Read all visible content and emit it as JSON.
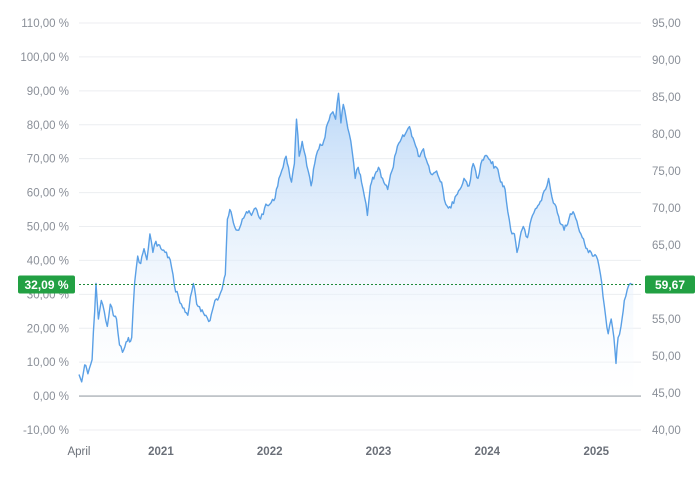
{
  "chart_data": {
    "type": "line",
    "x_range": [
      "2020-04-01",
      "2025-05-31"
    ],
    "x_ticks": [
      {
        "label": "April",
        "date": "2020-04-01",
        "bold": false
      },
      {
        "label": "2021",
        "date": "2021-01-01",
        "bold": true
      },
      {
        "label": "2022",
        "date": "2022-01-01",
        "bold": true
      },
      {
        "label": "2023",
        "date": "2023-01-01",
        "bold": true
      },
      {
        "label": "2024",
        "date": "2024-01-01",
        "bold": true
      },
      {
        "label": "2025",
        "date": "2025-01-01",
        "bold": true
      }
    ],
    "left_axis": {
      "unit": "percent change",
      "range": [
        -10,
        110
      ],
      "tick_labels": [
        "-10,00 %",
        "0,00 %",
        "10,00 %",
        "20,00 %",
        "30,00 %",
        "40,00 %",
        "50,00 %",
        "60,00 %",
        "70,00 %",
        "80,00 %",
        "90,00 %",
        "100,00 %",
        "110,00 %"
      ],
      "tick_values": [
        -10,
        0,
        10,
        20,
        30,
        40,
        50,
        60,
        70,
        80,
        90,
        100,
        110
      ]
    },
    "right_axis": {
      "unit": "price",
      "range": [
        40,
        95
      ],
      "tick_labels": [
        "40,00",
        "45,00",
        "50,00",
        "55,00",
        "60,00",
        "65,00",
        "70,00",
        "75,00",
        "80,00",
        "85,00",
        "90,00",
        "95,00"
      ],
      "tick_values": [
        40,
        45,
        50,
        55,
        60,
        65,
        70,
        75,
        80,
        85,
        90,
        95
      ]
    },
    "series": [
      {
        "points": [
          [
            "2020-04-01",
            47.5
          ],
          [
            "2020-04-10",
            46.5
          ],
          [
            "2020-04-20",
            48.8
          ],
          [
            "2020-05-01",
            47.6
          ],
          [
            "2020-05-15",
            49.5
          ],
          [
            "2020-05-28",
            59.8
          ],
          [
            "2020-06-05",
            55.0
          ],
          [
            "2020-06-15",
            57.5
          ],
          [
            "2020-06-25",
            56.0
          ],
          [
            "2020-07-05",
            54.0
          ],
          [
            "2020-07-15",
            57.0
          ],
          [
            "2020-07-25",
            55.5
          ],
          [
            "2020-08-05",
            55.0
          ],
          [
            "2020-08-15",
            51.5
          ],
          [
            "2020-08-25",
            50.5
          ],
          [
            "2020-09-10",
            52.0
          ],
          [
            "2020-09-25",
            52.5
          ],
          [
            "2020-10-05",
            60.0
          ],
          [
            "2020-10-15",
            63.5
          ],
          [
            "2020-10-25",
            62.5
          ],
          [
            "2020-11-05",
            64.5
          ],
          [
            "2020-11-15",
            63.0
          ],
          [
            "2020-11-25",
            66.5
          ],
          [
            "2020-12-05",
            64.0
          ],
          [
            "2020-12-15",
            65.5
          ],
          [
            "2021-01-01",
            64.5
          ],
          [
            "2021-01-15",
            64.0
          ],
          [
            "2021-02-01",
            63.0
          ],
          [
            "2021-02-15",
            59.5
          ],
          [
            "2021-03-01",
            58.0
          ],
          [
            "2021-03-15",
            56.5
          ],
          [
            "2021-04-01",
            55.5
          ],
          [
            "2021-04-10",
            58.0
          ],
          [
            "2021-04-20",
            59.8
          ],
          [
            "2021-05-01",
            57.0
          ],
          [
            "2021-05-15",
            56.0
          ],
          [
            "2021-06-01",
            55.5
          ],
          [
            "2021-06-15",
            54.8
          ],
          [
            "2021-07-01",
            57.5
          ],
          [
            "2021-07-15",
            58.0
          ],
          [
            "2021-07-25",
            59.0
          ],
          [
            "2021-08-05",
            61.0
          ],
          [
            "2021-08-12",
            68.5
          ],
          [
            "2021-08-20",
            69.8
          ],
          [
            "2021-09-01",
            68.0
          ],
          [
            "2021-09-15",
            67.0
          ],
          [
            "2021-10-01",
            68.5
          ],
          [
            "2021-10-15",
            69.5
          ],
          [
            "2021-11-01",
            69.0
          ],
          [
            "2021-11-15",
            70.0
          ],
          [
            "2021-12-01",
            68.5
          ],
          [
            "2021-12-15",
            70.0
          ],
          [
            "2022-01-01",
            70.5
          ],
          [
            "2022-01-15",
            71.0
          ],
          [
            "2022-02-01",
            74.0
          ],
          [
            "2022-02-15",
            75.5
          ],
          [
            "2022-02-25",
            77.0
          ],
          [
            "2022-03-05",
            75.5
          ],
          [
            "2022-03-15",
            73.5
          ],
          [
            "2022-03-25",
            76.0
          ],
          [
            "2022-04-01",
            82.0
          ],
          [
            "2022-04-10",
            77.0
          ],
          [
            "2022-04-20",
            79.0
          ],
          [
            "2022-05-01",
            77.0
          ],
          [
            "2022-05-10",
            75.0
          ],
          [
            "2022-05-20",
            73.0
          ],
          [
            "2022-06-01",
            76.0
          ],
          [
            "2022-06-15",
            78.0
          ],
          [
            "2022-07-01",
            79.0
          ],
          [
            "2022-07-15",
            81.5
          ],
          [
            "2022-08-01",
            83.0
          ],
          [
            "2022-08-10",
            82.0
          ],
          [
            "2022-08-20",
            85.5
          ],
          [
            "2022-08-28",
            81.5
          ],
          [
            "2022-09-05",
            84.0
          ],
          [
            "2022-09-15",
            82.0
          ],
          [
            "2022-09-25",
            80.0
          ],
          [
            "2022-10-05",
            77.5
          ],
          [
            "2022-10-15",
            74.0
          ],
          [
            "2022-10-25",
            75.5
          ],
          [
            "2022-11-05",
            73.5
          ],
          [
            "2022-11-15",
            71.5
          ],
          [
            "2022-11-25",
            69.0
          ],
          [
            "2022-12-05",
            73.0
          ],
          [
            "2022-12-20",
            74.5
          ],
          [
            "2023-01-01",
            75.5
          ],
          [
            "2023-01-15",
            74.0
          ],
          [
            "2023-02-01",
            72.5
          ],
          [
            "2023-02-15",
            75.0
          ],
          [
            "2023-03-01",
            77.5
          ],
          [
            "2023-03-15",
            79.0
          ],
          [
            "2023-04-01",
            80.0
          ],
          [
            "2023-04-15",
            81.0
          ],
          [
            "2023-05-01",
            79.0
          ],
          [
            "2023-05-15",
            77.0
          ],
          [
            "2023-06-01",
            78.0
          ],
          [
            "2023-06-15",
            76.0
          ],
          [
            "2023-07-01",
            74.5
          ],
          [
            "2023-07-15",
            75.0
          ],
          [
            "2023-08-01",
            73.5
          ],
          [
            "2023-08-15",
            70.5
          ],
          [
            "2023-09-01",
            70.0
          ],
          [
            "2023-09-15",
            71.5
          ],
          [
            "2023-10-01",
            72.5
          ],
          [
            "2023-10-15",
            74.0
          ],
          [
            "2023-11-01",
            73.0
          ],
          [
            "2023-11-15",
            76.0
          ],
          [
            "2023-12-01",
            74.0
          ],
          [
            "2023-12-15",
            76.5
          ],
          [
            "2024-01-01",
            77.0
          ],
          [
            "2024-01-15",
            76.0
          ],
          [
            "2024-02-01",
            75.5
          ],
          [
            "2024-02-15",
            73.5
          ],
          [
            "2024-03-01",
            72.5
          ],
          [
            "2024-03-10",
            69.5
          ],
          [
            "2024-03-20",
            67.0
          ],
          [
            "2024-04-01",
            66.5
          ],
          [
            "2024-04-10",
            64.0
          ],
          [
            "2024-04-20",
            66.0
          ],
          [
            "2024-05-01",
            67.5
          ],
          [
            "2024-05-15",
            66.0
          ],
          [
            "2024-06-01",
            69.0
          ],
          [
            "2024-06-15",
            70.0
          ],
          [
            "2024-07-01",
            71.0
          ],
          [
            "2024-07-15",
            72.5
          ],
          [
            "2024-07-25",
            74.0
          ],
          [
            "2024-08-05",
            71.5
          ],
          [
            "2024-08-15",
            70.5
          ],
          [
            "2024-09-01",
            68.0
          ],
          [
            "2024-09-15",
            67.0
          ],
          [
            "2024-10-01",
            68.5
          ],
          [
            "2024-10-15",
            69.5
          ],
          [
            "2024-11-01",
            67.5
          ],
          [
            "2024-11-15",
            66.0
          ],
          [
            "2024-12-01",
            64.5
          ],
          [
            "2024-12-15",
            64.0
          ],
          [
            "2025-01-01",
            63.5
          ],
          [
            "2025-01-15",
            61.0
          ],
          [
            "2025-02-01",
            55.5
          ],
          [
            "2025-02-10",
            53.0
          ],
          [
            "2025-02-20",
            55.0
          ],
          [
            "2025-03-01",
            52.5
          ],
          [
            "2025-03-08",
            49.0
          ],
          [
            "2025-03-15",
            52.5
          ],
          [
            "2025-03-25",
            54.0
          ],
          [
            "2025-04-05",
            57.5
          ],
          [
            "2025-04-15",
            59.0
          ],
          [
            "2025-04-25",
            59.8
          ],
          [
            "2025-05-05",
            59.67
          ]
        ]
      }
    ],
    "current_value": {
      "left_label": "32,09 %",
      "right_label": "59,67",
      "price": 59.67
    },
    "grid": true
  },
  "colors": {
    "line": "#5aa0e6",
    "area_top": "#b8d6f7",
    "area_bottom": "#ffffff",
    "badge": "#22a043",
    "reference_line": "#1f8a3a",
    "zero_line": "#9aa0a8",
    "grid": "#eceef1"
  }
}
